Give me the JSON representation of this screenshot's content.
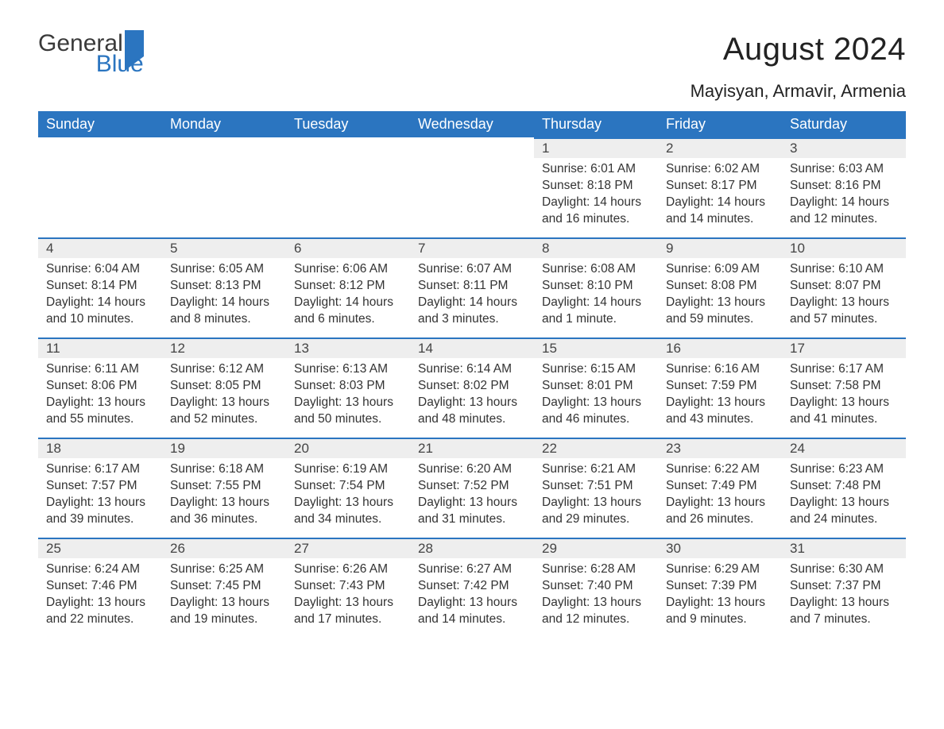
{
  "brand": {
    "general": "General",
    "blue": "Blue"
  },
  "title": "August 2024",
  "location": "Mayisyan, Armavir, Armenia",
  "colors": {
    "header_bg": "#2b75c0",
    "header_text": "#ffffff",
    "daynum_bg": "#eeeeee",
    "daynum_border": "#2b75c0",
    "body_text": "#333333",
    "page_bg": "#ffffff"
  },
  "weekdays": [
    "Sunday",
    "Monday",
    "Tuesday",
    "Wednesday",
    "Thursday",
    "Friday",
    "Saturday"
  ],
  "calendar": {
    "type": "table",
    "first_weekday_index": 4,
    "num_days": 31,
    "cell_fontsize": 15.5,
    "header_fontsize": 18,
    "title_fontsize": 40,
    "location_fontsize": 22,
    "days": [
      {
        "n": 1,
        "sunrise": "6:01 AM",
        "sunset": "8:18 PM",
        "daylight": "14 hours and 16 minutes."
      },
      {
        "n": 2,
        "sunrise": "6:02 AM",
        "sunset": "8:17 PM",
        "daylight": "14 hours and 14 minutes."
      },
      {
        "n": 3,
        "sunrise": "6:03 AM",
        "sunset": "8:16 PM",
        "daylight": "14 hours and 12 minutes."
      },
      {
        "n": 4,
        "sunrise": "6:04 AM",
        "sunset": "8:14 PM",
        "daylight": "14 hours and 10 minutes."
      },
      {
        "n": 5,
        "sunrise": "6:05 AM",
        "sunset": "8:13 PM",
        "daylight": "14 hours and 8 minutes."
      },
      {
        "n": 6,
        "sunrise": "6:06 AM",
        "sunset": "8:12 PM",
        "daylight": "14 hours and 6 minutes."
      },
      {
        "n": 7,
        "sunrise": "6:07 AM",
        "sunset": "8:11 PM",
        "daylight": "14 hours and 3 minutes."
      },
      {
        "n": 8,
        "sunrise": "6:08 AM",
        "sunset": "8:10 PM",
        "daylight": "14 hours and 1 minute."
      },
      {
        "n": 9,
        "sunrise": "6:09 AM",
        "sunset": "8:08 PM",
        "daylight": "13 hours and 59 minutes."
      },
      {
        "n": 10,
        "sunrise": "6:10 AM",
        "sunset": "8:07 PM",
        "daylight": "13 hours and 57 minutes."
      },
      {
        "n": 11,
        "sunrise": "6:11 AM",
        "sunset": "8:06 PM",
        "daylight": "13 hours and 55 minutes."
      },
      {
        "n": 12,
        "sunrise": "6:12 AM",
        "sunset": "8:05 PM",
        "daylight": "13 hours and 52 minutes."
      },
      {
        "n": 13,
        "sunrise": "6:13 AM",
        "sunset": "8:03 PM",
        "daylight": "13 hours and 50 minutes."
      },
      {
        "n": 14,
        "sunrise": "6:14 AM",
        "sunset": "8:02 PM",
        "daylight": "13 hours and 48 minutes."
      },
      {
        "n": 15,
        "sunrise": "6:15 AM",
        "sunset": "8:01 PM",
        "daylight": "13 hours and 46 minutes."
      },
      {
        "n": 16,
        "sunrise": "6:16 AM",
        "sunset": "7:59 PM",
        "daylight": "13 hours and 43 minutes."
      },
      {
        "n": 17,
        "sunrise": "6:17 AM",
        "sunset": "7:58 PM",
        "daylight": "13 hours and 41 minutes."
      },
      {
        "n": 18,
        "sunrise": "6:17 AM",
        "sunset": "7:57 PM",
        "daylight": "13 hours and 39 minutes."
      },
      {
        "n": 19,
        "sunrise": "6:18 AM",
        "sunset": "7:55 PM",
        "daylight": "13 hours and 36 minutes."
      },
      {
        "n": 20,
        "sunrise": "6:19 AM",
        "sunset": "7:54 PM",
        "daylight": "13 hours and 34 minutes."
      },
      {
        "n": 21,
        "sunrise": "6:20 AM",
        "sunset": "7:52 PM",
        "daylight": "13 hours and 31 minutes."
      },
      {
        "n": 22,
        "sunrise": "6:21 AM",
        "sunset": "7:51 PM",
        "daylight": "13 hours and 29 minutes."
      },
      {
        "n": 23,
        "sunrise": "6:22 AM",
        "sunset": "7:49 PM",
        "daylight": "13 hours and 26 minutes."
      },
      {
        "n": 24,
        "sunrise": "6:23 AM",
        "sunset": "7:48 PM",
        "daylight": "13 hours and 24 minutes."
      },
      {
        "n": 25,
        "sunrise": "6:24 AM",
        "sunset": "7:46 PM",
        "daylight": "13 hours and 22 minutes."
      },
      {
        "n": 26,
        "sunrise": "6:25 AM",
        "sunset": "7:45 PM",
        "daylight": "13 hours and 19 minutes."
      },
      {
        "n": 27,
        "sunrise": "6:26 AM",
        "sunset": "7:43 PM",
        "daylight": "13 hours and 17 minutes."
      },
      {
        "n": 28,
        "sunrise": "6:27 AM",
        "sunset": "7:42 PM",
        "daylight": "13 hours and 14 minutes."
      },
      {
        "n": 29,
        "sunrise": "6:28 AM",
        "sunset": "7:40 PM",
        "daylight": "13 hours and 12 minutes."
      },
      {
        "n": 30,
        "sunrise": "6:29 AM",
        "sunset": "7:39 PM",
        "daylight": "13 hours and 9 minutes."
      },
      {
        "n": 31,
        "sunrise": "6:30 AM",
        "sunset": "7:37 PM",
        "daylight": "13 hours and 7 minutes."
      }
    ]
  },
  "labels": {
    "sunrise_prefix": "Sunrise: ",
    "sunset_prefix": "Sunset: ",
    "daylight_prefix": "Daylight: "
  }
}
